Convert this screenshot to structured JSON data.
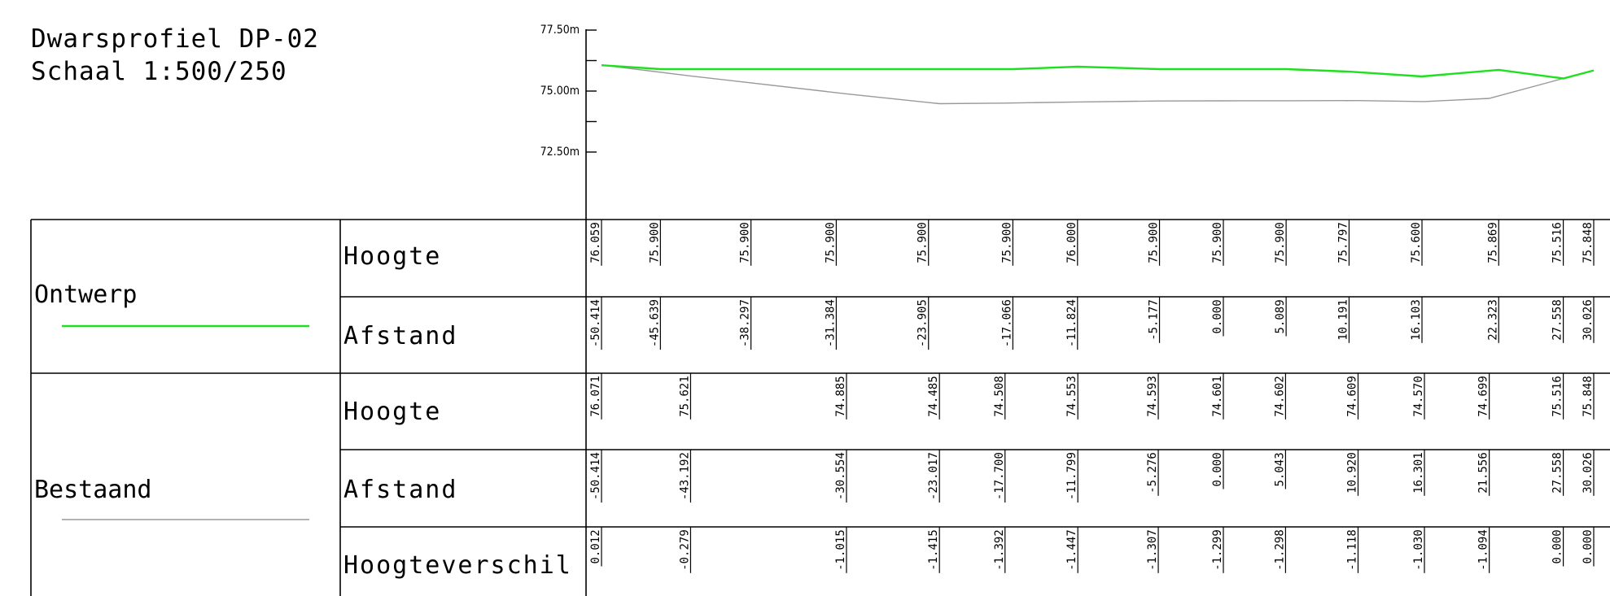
{
  "title": {
    "line1": "Dwarsprofiel DP-02",
    "line2": "Schaal 1:500/250"
  },
  "colors": {
    "ontwerp": "#1fe01f",
    "bestaand": "#999999"
  },
  "chart_data": {
    "type": "line",
    "title": "",
    "xlabel": "",
    "ylabel": "",
    "xlim": [
      -50.414,
      30.026
    ],
    "y_ticks": [
      "77.50m",
      "75.00m",
      "72.50m"
    ],
    "series": [
      {
        "name": "Ontwerp",
        "x": [
          -50.414,
          -45.639,
          -38.297,
          -31.384,
          -23.905,
          -17.066,
          -11.824,
          -5.177,
          0.0,
          5.089,
          10.191,
          16.103,
          22.323,
          27.558,
          30.026
        ],
        "y": [
          76.059,
          75.9,
          75.9,
          75.9,
          75.9,
          75.9,
          76.0,
          75.9,
          75.9,
          75.9,
          75.797,
          75.6,
          75.869,
          75.516,
          75.848
        ]
      },
      {
        "name": "Bestaand",
        "x": [
          -50.414,
          -43.192,
          -30.554,
          -23.017,
          -17.7,
          -11.799,
          -5.276,
          0.0,
          5.043,
          10.92,
          16.301,
          21.556,
          27.558,
          30.026
        ],
        "y": [
          76.071,
          75.621,
          74.885,
          74.485,
          74.508,
          74.553,
          74.593,
          74.601,
          74.602,
          74.609,
          74.57,
          74.699,
          75.516,
          75.848
        ]
      }
    ]
  },
  "table": {
    "ontwerp": {
      "label": "Ontwerp",
      "hoogte_label": "Hoogte",
      "afstand_label": "Afstand",
      "hoogte": [
        "76.059",
        "75.900",
        "75.900",
        "75.900",
        "75.900",
        "75.900",
        "76.000",
        "75.900",
        "75.900",
        "75.900",
        "75.797",
        "75.600",
        "75.869",
        "75.516",
        "75.848"
      ],
      "afstand": [
        "-50.414",
        "-45.639",
        "-38.297",
        "-31.384",
        "-23.905",
        "-17.066",
        "-11.824",
        "-5.177",
        "0.000",
        "5.089",
        "10.191",
        "16.103",
        "22.323",
        "27.558",
        "30.026"
      ]
    },
    "bestaand": {
      "label": "Bestaand",
      "hoogte_label": "Hoogte",
      "afstand_label": "Afstand",
      "verschil_label": "Hoogteverschil",
      "hoogte": [
        "76.071",
        "75.621",
        "74.885",
        "74.485",
        "74.508",
        "74.553",
        "74.593",
        "74.601",
        "74.602",
        "74.609",
        "74.570",
        "74.699",
        "75.516",
        "75.848"
      ],
      "afstand": [
        "-50.414",
        "-43.192",
        "-30.554",
        "-23.017",
        "-17.700",
        "-11.799",
        "-5.276",
        "0.000",
        "5.043",
        "10.920",
        "16.301",
        "21.556",
        "27.558",
        "30.026"
      ],
      "verschil": [
        "0.012",
        "-0.279",
        "-1.015",
        "-1.415",
        "-1.392",
        "-1.447",
        "-1.307",
        "-1.299",
        "-1.298",
        "-1.118",
        "-1.030",
        "-1.094",
        "0.000",
        "0.000"
      ]
    }
  }
}
